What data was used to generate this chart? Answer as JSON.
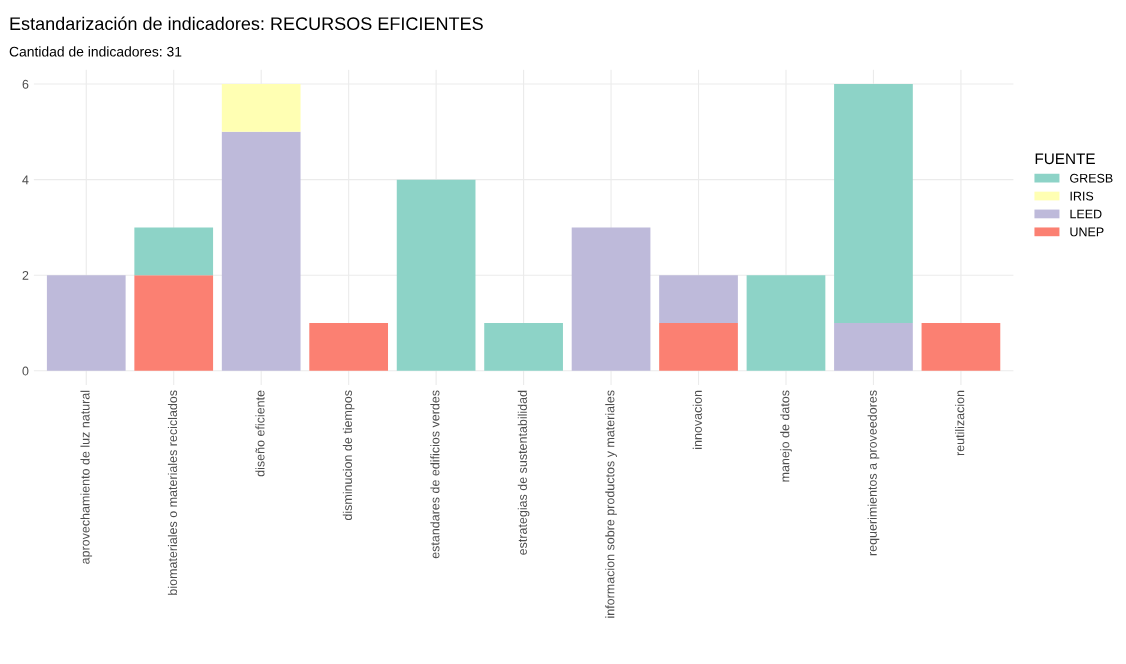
{
  "chart_data": {
    "type": "bar",
    "title": "Estandarización de indicadores: RECURSOS EFICIENTES",
    "subtitle": "Cantidad de indicadores: 31",
    "categories": [
      "aprovechamiento de luz natural",
      "biomateriales o materiales reciclados",
      "diseño eficiente",
      "disminucion de tiempos",
      "estandares de edificios verdes",
      "estrategias de sustentabilidad",
      "informacion sobre productos y materiales",
      "innovacion",
      "manejo de datos",
      "requerimientos a proveedores",
      "reutilizacion"
    ],
    "stacked": true,
    "legend_title": "FUENTE",
    "legend": "right",
    "grid": true,
    "ylim": [
      -0.3,
      6.3
    ],
    "yticks": [
      0,
      2,
      4,
      6
    ],
    "series": [
      {
        "name": "UNEP",
        "color": "#fb8072",
        "values": [
          null,
          2,
          null,
          1,
          null,
          null,
          null,
          1,
          null,
          null,
          1
        ]
      },
      {
        "name": "LEED",
        "color": "#bebada",
        "values": [
          2,
          null,
          5,
          null,
          null,
          null,
          3,
          1,
          null,
          1,
          null
        ]
      },
      {
        "name": "IRIS",
        "color": "#ffffb3",
        "values": [
          null,
          null,
          1,
          null,
          null,
          null,
          null,
          null,
          null,
          null,
          null
        ]
      },
      {
        "name": "GRESB",
        "color": "#8dd3c7",
        "values": [
          null,
          1,
          null,
          null,
          4,
          1,
          null,
          null,
          2,
          5,
          null
        ]
      }
    ]
  }
}
